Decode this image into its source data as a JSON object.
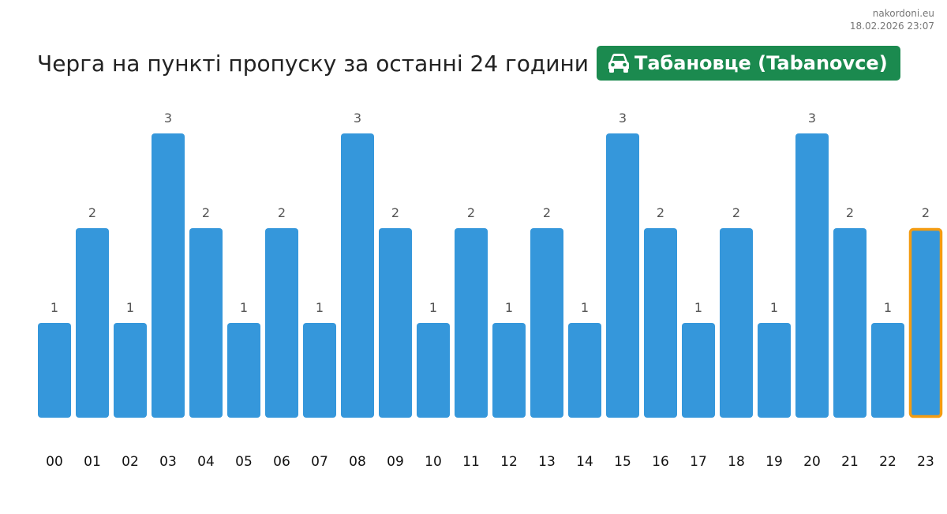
{
  "source": {
    "site": "nakordoni.eu",
    "datetime": "18.02.2026 23:07"
  },
  "header": {
    "title": "Черга на пункті пропуску за останні 24 години",
    "checkpoint": "Табановце (Tabanovce)",
    "checkpoint_icon": "car-icon"
  },
  "colors": {
    "bar": "#3597db",
    "highlight": "#f39c12",
    "badge": "#1b8a4f"
  },
  "chart_data": {
    "type": "bar",
    "title": "Черга на пункті пропуску за останні 24 години",
    "categories": [
      "00",
      "01",
      "02",
      "03",
      "04",
      "05",
      "06",
      "07",
      "08",
      "09",
      "10",
      "11",
      "12",
      "13",
      "14",
      "15",
      "16",
      "17",
      "18",
      "19",
      "20",
      "21",
      "22",
      "23"
    ],
    "values": [
      1,
      2,
      1,
      3,
      2,
      1,
      2,
      1,
      3,
      2,
      1,
      2,
      1,
      2,
      1,
      3,
      2,
      1,
      2,
      1,
      3,
      2,
      1,
      2
    ],
    "highlighted_category": "23",
    "ylim": [
      0,
      3
    ],
    "grid": false,
    "legend": "none",
    "data_labels": true
  }
}
